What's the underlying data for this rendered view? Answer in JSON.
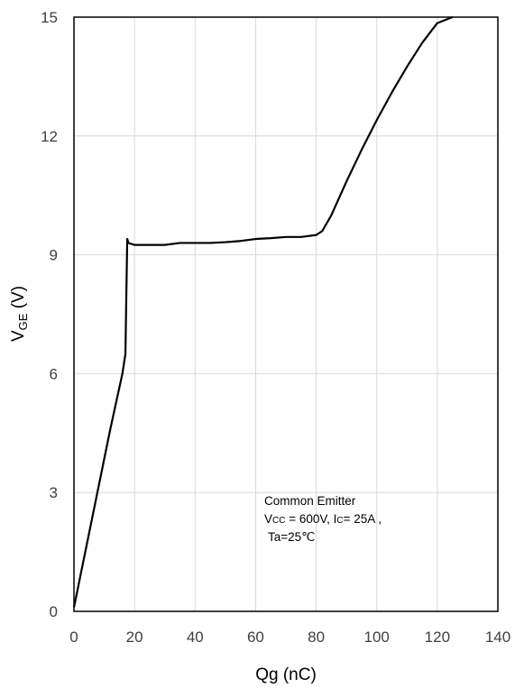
{
  "chart_data": {
    "type": "line",
    "xlabel": "Qg (nC)",
    "ylabel_main": "V",
    "ylabel_sub": "GE",
    "ylabel_unit": " (V)",
    "xlim": [
      0,
      140
    ],
    "ylim": [
      0,
      15
    ],
    "xticks": [
      0,
      20,
      40,
      60,
      80,
      100,
      120,
      140
    ],
    "yticks": [
      0,
      3,
      6,
      9,
      12,
      15
    ],
    "grid": true,
    "annotation": {
      "line1": "Common Emitter",
      "line2_a": "V",
      "line2_a_sub": "CC",
      "line2_b": " = 600V, I",
      "line2_b_sub": "C",
      "line2_c": "= 25A ,",
      "line3": "Ta=25℃"
    },
    "series": [
      {
        "x": [
          0,
          2,
          4,
          6,
          8,
          10,
          12,
          14,
          16,
          17,
          17.3,
          17.6,
          18,
          20,
          25,
          30,
          35,
          40,
          45,
          50,
          55,
          60,
          65,
          70,
          75,
          80,
          82,
          85,
          90,
          95,
          100,
          105,
          110,
          115,
          120,
          125
        ],
        "y": [
          0.1,
          0.85,
          1.6,
          2.35,
          3.1,
          3.85,
          4.6,
          5.3,
          6.0,
          6.5,
          8.0,
          9.4,
          9.3,
          9.25,
          9.25,
          9.25,
          9.3,
          9.3,
          9.3,
          9.32,
          9.35,
          9.4,
          9.42,
          9.45,
          9.45,
          9.5,
          9.6,
          10.0,
          10.85,
          11.65,
          12.4,
          13.1,
          13.75,
          14.35,
          14.85,
          15.0
        ]
      }
    ]
  }
}
